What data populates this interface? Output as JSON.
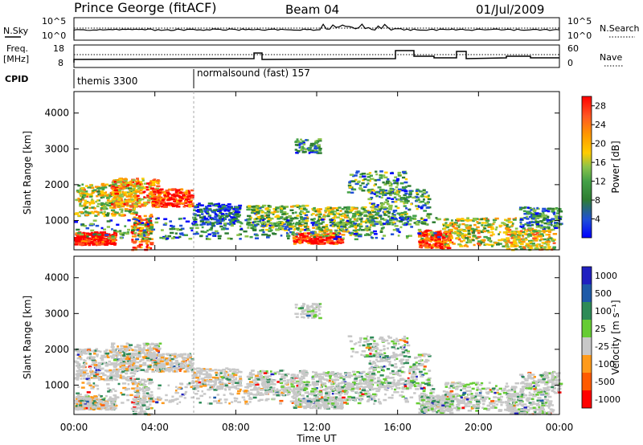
{
  "header": {
    "station": "Prince George (fitACF)",
    "beam": "Beam 04",
    "date": "01/Jul/2009"
  },
  "top_panels": {
    "nsky_label": "N.Sky",
    "nsky_top": "10^5",
    "nsky_bottom": "10^0",
    "nsearch_top": "10^5",
    "nsearch_bottom": "10^0",
    "nsearch_label": "N.Search",
    "freq_label": "Freq.",
    "freq_unit": "[MHz]",
    "freq_top": "18",
    "freq_bottom": "8",
    "nave_top": "60",
    "nave_bottom": "0",
    "nave_label": "Nave",
    "cpid_label": "CPID",
    "cpid_1": "themis 3300",
    "cpid_2": "normalsound (fast) 157"
  },
  "chart_data": [
    {
      "type": "heatmap",
      "title": "",
      "xlabel": "Time UT",
      "ylabel": "Slant Range [km]",
      "x_ticks": [
        "00:00",
        "04:00",
        "08:00",
        "12:00",
        "16:00",
        "20:00",
        "00:00"
      ],
      "x_range_hours": [
        0,
        24
      ],
      "y_ticks": [
        1000,
        2000,
        3000,
        4000
      ],
      "ylim": [
        180,
        4600
      ],
      "colorbar": {
        "label": "Power [dB]",
        "ticks": [
          "28",
          "24",
          "20",
          "16",
          "12",
          "8",
          "4"
        ],
        "range": [
          0,
          30
        ]
      }
    },
    {
      "type": "heatmap",
      "title": "",
      "xlabel": "Time UT",
      "ylabel": "Slant Range [km]",
      "x_ticks": [
        "00:00",
        "04:00",
        "08:00",
        "12:00",
        "16:00",
        "20:00",
        "00:00"
      ],
      "x_range_hours": [
        0,
        24
      ],
      "y_ticks": [
        1000,
        2000,
        3000,
        4000
      ],
      "ylim": [
        180,
        4600
      ],
      "colorbar": {
        "label": "Velocity [m s⁻¹]",
        "ticks": [
          "1000",
          "500",
          "100",
          "25",
          "-25",
          "-100",
          "-500",
          "-1000"
        ]
      }
    }
  ],
  "colors": {
    "power_scale": [
      "#0000ff",
      "#1f4fd6",
      "#2e7d32",
      "#43a047",
      "#8bc34a",
      "#ffcc00",
      "#ff9800",
      "#ff5722",
      "#ff0000"
    ],
    "velocity_scale": [
      "#ff0000",
      "#ff5a00",
      "#ff9a1a",
      "#c8c8c8",
      "#66cc33",
      "#2e8b57",
      "#1e5aa8",
      "#2020c0"
    ]
  }
}
